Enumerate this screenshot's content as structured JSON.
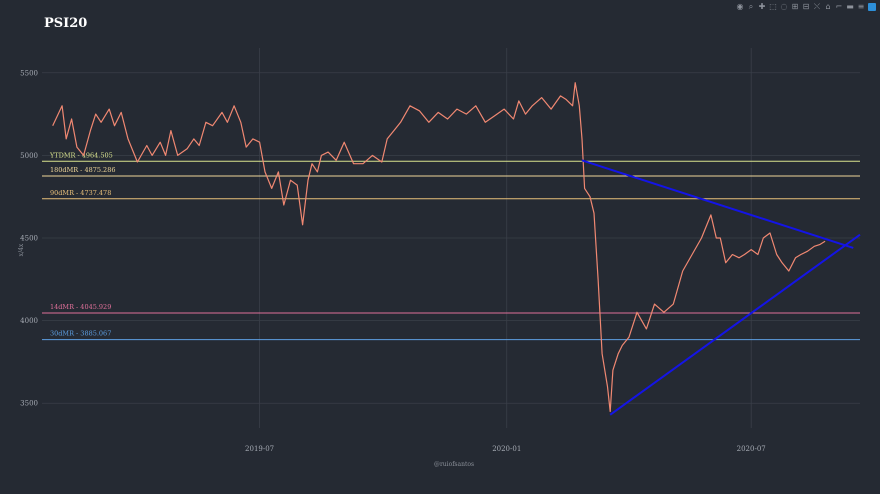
{
  "chart_data": {
    "type": "line",
    "title": "PSI20",
    "xlabel": "@ruiofsantos",
    "ylabel": "x/4x",
    "x_ticks": [
      "2019-07",
      "2020-01",
      "2020-07"
    ],
    "y_ticks": [
      3500,
      4000,
      4500,
      5000,
      5500
    ],
    "xlim": [
      "2019-01-20",
      "2020-09-20"
    ],
    "ylim": [
      3350,
      5650
    ],
    "series": [
      {
        "color": "#f08872",
        "x": [
          "2019-01-28",
          "2019-02-04",
          "2019-02-07",
          "2019-02-11",
          "2019-02-15",
          "2019-02-20",
          "2019-02-25",
          "2019-03-01",
          "2019-03-05",
          "2019-03-11",
          "2019-03-15",
          "2019-03-20",
          "2019-03-25",
          "2019-04-01",
          "2019-04-08",
          "2019-04-12",
          "2019-04-18",
          "2019-04-22",
          "2019-04-26",
          "2019-05-01",
          "2019-05-08",
          "2019-05-13",
          "2019-05-17",
          "2019-05-22",
          "2019-05-27",
          "2019-06-03",
          "2019-06-07",
          "2019-06-12",
          "2019-06-17",
          "2019-06-21",
          "2019-06-26",
          "2019-07-01",
          "2019-07-05",
          "2019-07-10",
          "2019-07-15",
          "2019-07-19",
          "2019-07-24",
          "2019-07-29",
          "2019-08-02",
          "2019-08-06",
          "2019-08-09",
          "2019-08-13",
          "2019-08-16",
          "2019-08-21",
          "2019-08-27",
          "2019-09-02",
          "2019-09-09",
          "2019-09-16",
          "2019-09-23",
          "2019-09-30",
          "2019-10-04",
          "2019-10-09",
          "2019-10-14",
          "2019-10-21",
          "2019-10-28",
          "2019-11-04",
          "2019-11-11",
          "2019-11-18",
          "2019-11-25",
          "2019-12-02",
          "2019-12-09",
          "2019-12-16",
          "2019-12-23",
          "2019-12-30",
          "2020-01-06",
          "2020-01-10",
          "2020-01-15",
          "2020-01-20",
          "2020-01-27",
          "2020-02-03",
          "2020-02-10",
          "2020-02-14",
          "2020-02-19",
          "2020-02-21",
          "2020-02-24",
          "2020-02-26",
          "2020-02-28",
          "2020-03-03",
          "2020-03-06",
          "2020-03-09",
          "2020-03-12",
          "2020-03-16",
          "2020-03-18",
          "2020-03-20",
          "2020-03-24",
          "2020-03-27",
          "2020-04-01",
          "2020-04-07",
          "2020-04-14",
          "2020-04-20",
          "2020-04-27",
          "2020-05-04",
          "2020-05-11",
          "2020-05-18",
          "2020-05-25",
          "2020-06-01",
          "2020-06-05",
          "2020-06-08",
          "2020-06-12",
          "2020-06-17",
          "2020-06-22",
          "2020-06-26",
          "2020-07-01",
          "2020-07-06",
          "2020-07-10",
          "2020-07-15",
          "2020-07-20",
          "2020-07-24",
          "2020-07-29",
          "2020-08-03",
          "2020-08-07",
          "2020-08-12",
          "2020-08-17",
          "2020-08-21",
          "2020-08-25"
        ],
        "values": [
          5180,
          5300,
          5100,
          5220,
          5050,
          5000,
          5150,
          5250,
          5200,
          5280,
          5180,
          5260,
          5100,
          4960,
          5060,
          5000,
          5080,
          5000,
          5150,
          5000,
          5040,
          5100,
          5060,
          5200,
          5180,
          5260,
          5200,
          5300,
          5200,
          5050,
          5100,
          5080,
          4900,
          4800,
          4900,
          4700,
          4850,
          4820,
          4580,
          4850,
          4950,
          4900,
          5000,
          5020,
          4970,
          5080,
          4950,
          4950,
          5000,
          4960,
          5100,
          5150,
          5200,
          5300,
          5270,
          5200,
          5260,
          5220,
          5280,
          5250,
          5300,
          5200,
          5240,
          5280,
          5220,
          5330,
          5250,
          5300,
          5350,
          5280,
          5360,
          5340,
          5300,
          5440,
          5300,
          5100,
          4800,
          4750,
          4650,
          4250,
          3800,
          3600,
          3450,
          3700,
          3800,
          3850,
          3900,
          4050,
          3950,
          4100,
          4050,
          4100,
          4300,
          4400,
          4500,
          4640,
          4500,
          4500,
          4350,
          4400,
          4380,
          4400,
          4430,
          4400,
          4500,
          4530,
          4400,
          4350,
          4300,
          4380,
          4400,
          4420,
          4450,
          4460,
          4480
        ]
      }
    ],
    "hlines": [
      {
        "label": "YTDMR - 4964.505",
        "value": 4964.505,
        "color": "#d9e38e"
      },
      {
        "label": "180dMR - 4875.286",
        "value": 4875.286,
        "color": "#f0d79a"
      },
      {
        "label": "90dMR - 4737.478",
        "value": 4737.478,
        "color": "#e8c07a"
      },
      {
        "label": "14dMR - 4045.929",
        "value": 4045.929,
        "color": "#e0709a"
      },
      {
        "label": "30dMR - 3885.067",
        "value": 3885.067,
        "color": "#5d9fe3"
      }
    ],
    "trendlines": {
      "color": "#1414e6",
      "lines": [
        {
          "x": [
            "2020-02-26",
            "2020-09-15"
          ],
          "y": [
            4970,
            4440
          ]
        },
        {
          "x": [
            "2020-03-18",
            "2020-09-20"
          ],
          "y": [
            3430,
            4520
          ]
        }
      ]
    }
  },
  "modebar": {
    "icons": [
      "camera-icon",
      "zoom-icon",
      "pan-icon",
      "box-select-icon",
      "lasso-icon",
      "zoom-in-icon",
      "zoom-out-icon",
      "autoscale-icon",
      "reset-axes-icon",
      "spike-lines-icon",
      "hover-closest-icon",
      "hover-compare-icon"
    ],
    "glyphs": [
      "◉",
      "⌕",
      "✚",
      "⬚",
      "◌",
      "⊞",
      "⊟",
      "⤬",
      "⌂",
      "⌐",
      "▬",
      "≡"
    ]
  }
}
